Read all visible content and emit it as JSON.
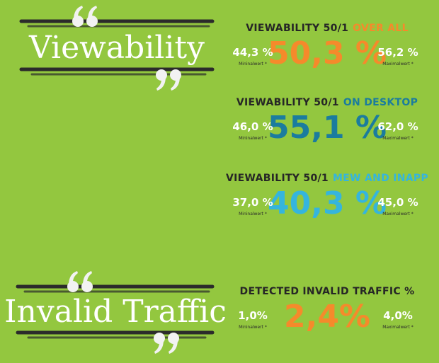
{
  "sections": [
    {
      "title": "Viewability",
      "blocks": [
        {
          "label": "VIEWABILITY 50/1",
          "highlight": "OVER ALL",
          "color": "#f58a2b",
          "min": "44,3 %",
          "min_label": "Mininalwert *",
          "value": "50,3 %",
          "max": "56,2 %",
          "max_label": "Maximalwert *"
        },
        {
          "label": "VIEWABILITY 50/1",
          "highlight": "ON DESKTOP",
          "color": "#1b7c9e",
          "min": "46,0 %",
          "min_label": "Mininalwert *",
          "value": "55,1 %",
          "max": "62,0 %",
          "max_label": "Maximalwert *"
        },
        {
          "label": "VIEWABILITY 50/1",
          "highlight": "MEW AND INAPP",
          "color": "#35b5dd",
          "min": "37,0 %",
          "min_label": "Mininalwert *",
          "value": "40,3 %",
          "max": "45,0 %",
          "max_label": "Maximalwert *"
        }
      ]
    },
    {
      "title": "Invalid Traffic",
      "blocks": [
        {
          "label": "DETECTED INVALID TRAFFIC %",
          "color": "#f58a2b",
          "min": "1,0%",
          "min_label": "Mininalwert *",
          "value": "2,4%",
          "max": "4,0%",
          "max_label": "Maximalwert *"
        }
      ]
    }
  ]
}
